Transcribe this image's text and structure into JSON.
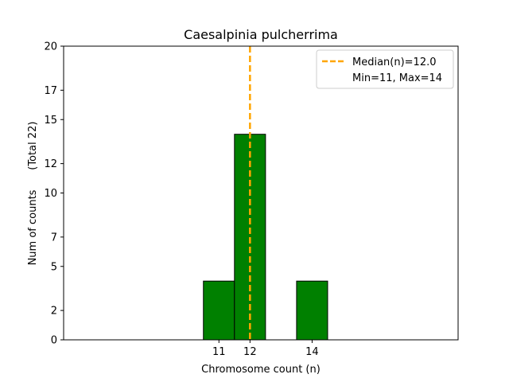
{
  "chart_data": {
    "type": "bar",
    "title": "Caesalpinia pulcherrima",
    "xlabel": "Chromosome count (n)",
    "ylabel": "Num of counts      (Total 22)",
    "x_ticks": [
      11,
      12,
      14
    ],
    "y_ticks": [
      0,
      2,
      5,
      7,
      10,
      12,
      15,
      17,
      20
    ],
    "xlim": [
      6,
      18.7
    ],
    "ylim": [
      0,
      20
    ],
    "bars": [
      {
        "x": 11,
        "value": 4
      },
      {
        "x": 12,
        "value": 14
      },
      {
        "x": 13,
        "value": 0
      },
      {
        "x": 14,
        "value": 4
      },
      {
        "x": 15,
        "value": 0
      },
      {
        "x": 16,
        "value": 0
      }
    ],
    "bar_color": "#008000",
    "edge_color": "#000000",
    "median": 12.0,
    "median_color": "#ffa500",
    "legend": {
      "position": "top-right",
      "entries": [
        "Median(n)=12.0",
        "Min=11, Max=14"
      ]
    },
    "grid": false
  }
}
